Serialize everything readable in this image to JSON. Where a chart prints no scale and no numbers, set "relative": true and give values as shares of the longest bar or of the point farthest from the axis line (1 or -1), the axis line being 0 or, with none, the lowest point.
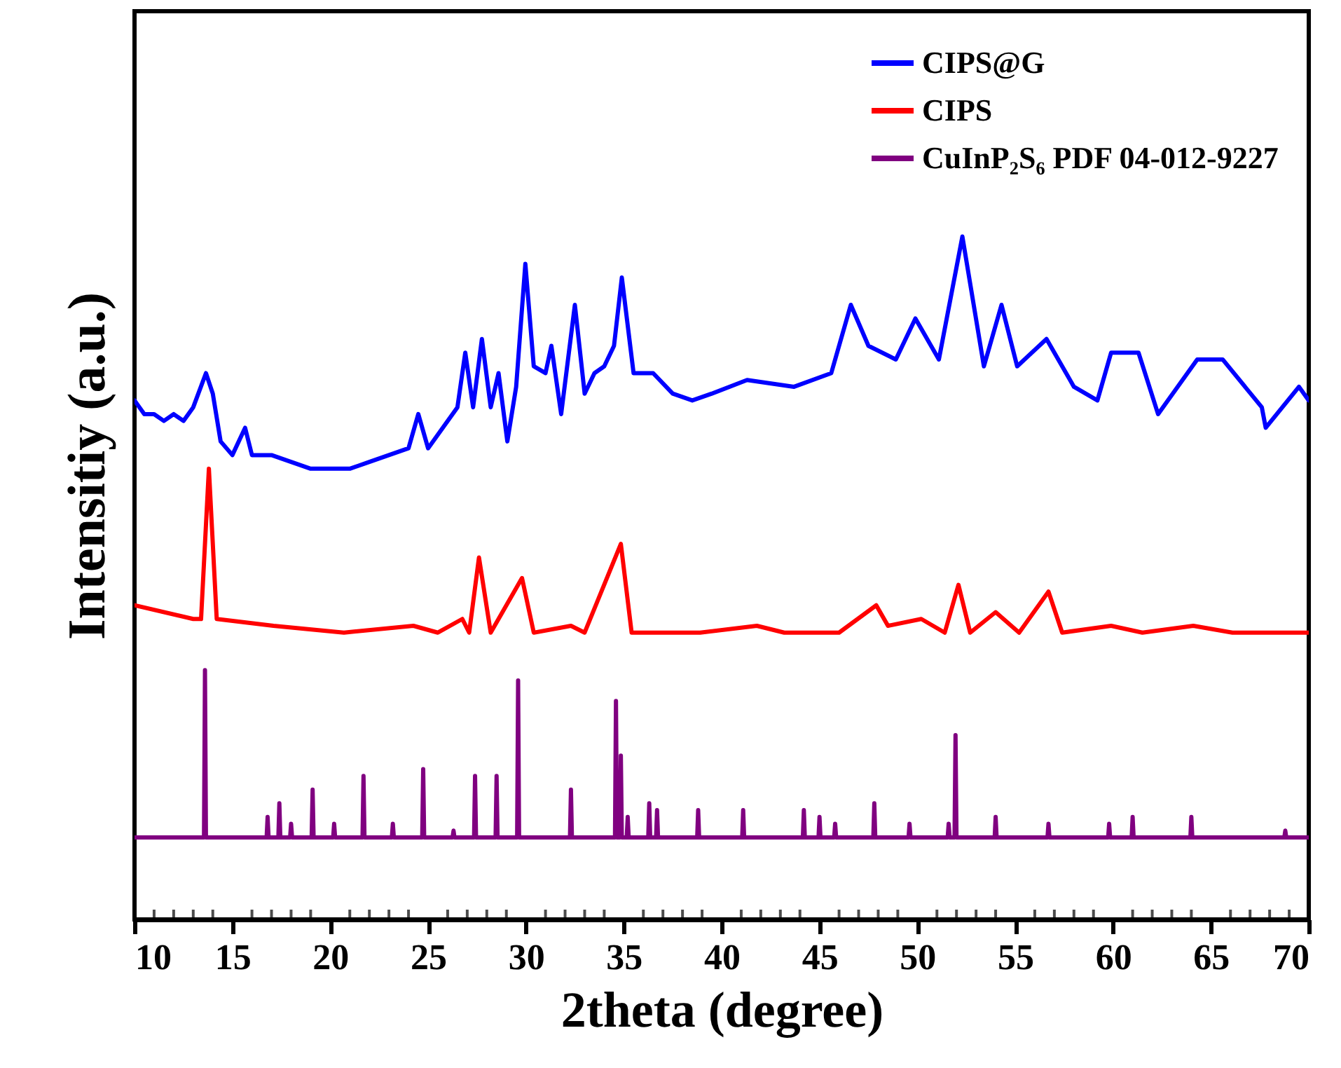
{
  "chart_data": {
    "type": "line",
    "relative": true,
    "xlabel": "2theta (degree)",
    "ylabel": "Intensitiy (a.u.)",
    "xlim": [
      10,
      70
    ],
    "xticks": [
      10,
      15,
      20,
      25,
      30,
      35,
      40,
      45,
      50,
      55,
      60,
      65,
      70
    ],
    "grid": false,
    "legend": "top right",
    "marker": "none",
    "line_style": "solid",
    "series": [
      {
        "name": "CIPS@G",
        "color": "#0000ff",
        "x": [
          10.0,
          10.5,
          11.0,
          11.5,
          12.0,
          12.5,
          13.0,
          13.65,
          14.0,
          14.4,
          15.0,
          15.65,
          16.0,
          17.0,
          18.0,
          19.0,
          20.0,
          21.0,
          22.0,
          23.0,
          24.0,
          24.5,
          25.0,
          25.5,
          26.0,
          26.5,
          26.9,
          27.3,
          27.75,
          28.2,
          28.6,
          29.05,
          29.5,
          29.97,
          30.4,
          31.0,
          31.3,
          31.8,
          32.5,
          33.0,
          33.5,
          34.0,
          34.5,
          34.9,
          35.5,
          36.5,
          37.5,
          38.5,
          39.5,
          41.3,
          43.7,
          45.6,
          46.6,
          47.5,
          48.9,
          49.9,
          51.1,
          52.3,
          53.4,
          54.3,
          55.1,
          56.6,
          58.0,
          59.2,
          59.9,
          61.3,
          62.3,
          64.3,
          65.6,
          67.6,
          67.8,
          69.5,
          70.0
        ],
        "values": [
          0.76,
          0.74,
          0.74,
          0.73,
          0.74,
          0.73,
          0.75,
          0.8,
          0.77,
          0.7,
          0.68,
          0.72,
          0.68,
          0.68,
          0.67,
          0.66,
          0.66,
          0.66,
          0.67,
          0.68,
          0.69,
          0.74,
          0.69,
          0.71,
          0.73,
          0.75,
          0.83,
          0.75,
          0.85,
          0.75,
          0.8,
          0.7,
          0.78,
          0.96,
          0.81,
          0.8,
          0.84,
          0.74,
          0.9,
          0.77,
          0.8,
          0.81,
          0.84,
          0.94,
          0.8,
          0.8,
          0.77,
          0.76,
          0.77,
          0.79,
          0.78,
          0.8,
          0.9,
          0.84,
          0.82,
          0.88,
          0.82,
          1.0,
          0.81,
          0.9,
          0.81,
          0.85,
          0.78,
          0.76,
          0.83,
          0.83,
          0.74,
          0.82,
          0.82,
          0.75,
          0.72,
          0.78,
          0.76
        ]
      },
      {
        "name": "CIPS",
        "color": "#ff0000",
        "x": [
          10.0,
          13.0,
          13.4,
          13.8,
          14.2,
          17.1,
          20.7,
          24.25,
          25.5,
          26.75,
          27.1,
          27.6,
          28.2,
          29.8,
          30.4,
          32.3,
          33.0,
          34.85,
          35.4,
          38.0,
          38.9,
          41.8,
          43.2,
          46.0,
          47.9,
          48.5,
          50.2,
          51.4,
          52.1,
          52.7,
          54.0,
          55.2,
          56.7,
          57.4,
          59.9,
          61.5,
          64.1,
          66.1,
          70.0
        ],
        "values": [
          0.46,
          0.44,
          0.44,
          0.66,
          0.44,
          0.43,
          0.42,
          0.43,
          0.42,
          0.44,
          0.42,
          0.53,
          0.42,
          0.5,
          0.42,
          0.43,
          0.42,
          0.55,
          0.42,
          0.42,
          0.42,
          0.43,
          0.42,
          0.42,
          0.46,
          0.43,
          0.44,
          0.42,
          0.49,
          0.42,
          0.45,
          0.42,
          0.48,
          0.42,
          0.43,
          0.42,
          0.43,
          0.42,
          0.42
        ]
      },
      {
        "name": "CuInP₂S₆ PDF 04-012-9227",
        "color": "#800080",
        "x": [
          10.0,
          13.55,
          13.6,
          13.65,
          16.75,
          16.8,
          16.85,
          17.35,
          17.4,
          17.45,
          17.95,
          18.0,
          18.05,
          19.05,
          19.1,
          19.15,
          20.15,
          20.2,
          20.25,
          21.65,
          21.7,
          21.75,
          23.15,
          23.2,
          23.25,
          24.7,
          24.75,
          24.8,
          26.25,
          26.3,
          26.35,
          27.35,
          27.4,
          27.45,
          28.45,
          28.5,
          28.55,
          29.55,
          29.6,
          29.65,
          32.25,
          32.3,
          32.35,
          34.55,
          34.6,
          34.65,
          34.8,
          34.85,
          34.9,
          35.15,
          35.2,
          35.25,
          36.25,
          36.3,
          36.35,
          36.65,
          36.7,
          36.75,
          38.75,
          38.8,
          38.85,
          41.05,
          41.1,
          41.15,
          44.15,
          44.2,
          44.25,
          44.95,
          45.0,
          45.05,
          45.75,
          45.8,
          45.85,
          47.75,
          47.8,
          47.85,
          49.55,
          49.6,
          49.65,
          51.55,
          51.6,
          51.65,
          51.9,
          51.95,
          52.0,
          53.95,
          54.0,
          54.05,
          56.65,
          56.7,
          56.75,
          59.75,
          59.8,
          59.85,
          60.95,
          61.0,
          61.05,
          63.95,
          64.0,
          64.05,
          68.75,
          68.8,
          68.85,
          70.0
        ],
        "values": [
          0.12,
          0.12,
          0.365,
          0.12,
          0.12,
          0.15,
          0.12,
          0.12,
          0.17,
          0.12,
          0.12,
          0.14,
          0.12,
          0.12,
          0.19,
          0.12,
          0.12,
          0.14,
          0.12,
          0.12,
          0.21,
          0.12,
          0.12,
          0.14,
          0.12,
          0.12,
          0.22,
          0.12,
          0.12,
          0.13,
          0.12,
          0.12,
          0.21,
          0.12,
          0.12,
          0.21,
          0.12,
          0.12,
          0.35,
          0.12,
          0.12,
          0.19,
          0.12,
          0.12,
          0.32,
          0.12,
          0.12,
          0.24,
          0.12,
          0.12,
          0.15,
          0.12,
          0.12,
          0.17,
          0.12,
          0.12,
          0.16,
          0.12,
          0.12,
          0.16,
          0.12,
          0.12,
          0.16,
          0.12,
          0.12,
          0.16,
          0.12,
          0.12,
          0.15,
          0.12,
          0.12,
          0.14,
          0.12,
          0.12,
          0.17,
          0.12,
          0.12,
          0.14,
          0.12,
          0.12,
          0.14,
          0.12,
          0.12,
          0.27,
          0.12,
          0.12,
          0.15,
          0.12,
          0.12,
          0.14,
          0.12,
          0.12,
          0.14,
          0.12,
          0.12,
          0.15,
          0.12,
          0.12,
          0.15,
          0.12,
          0.12,
          0.13,
          0.12,
          0.12
        ]
      }
    ]
  }
}
